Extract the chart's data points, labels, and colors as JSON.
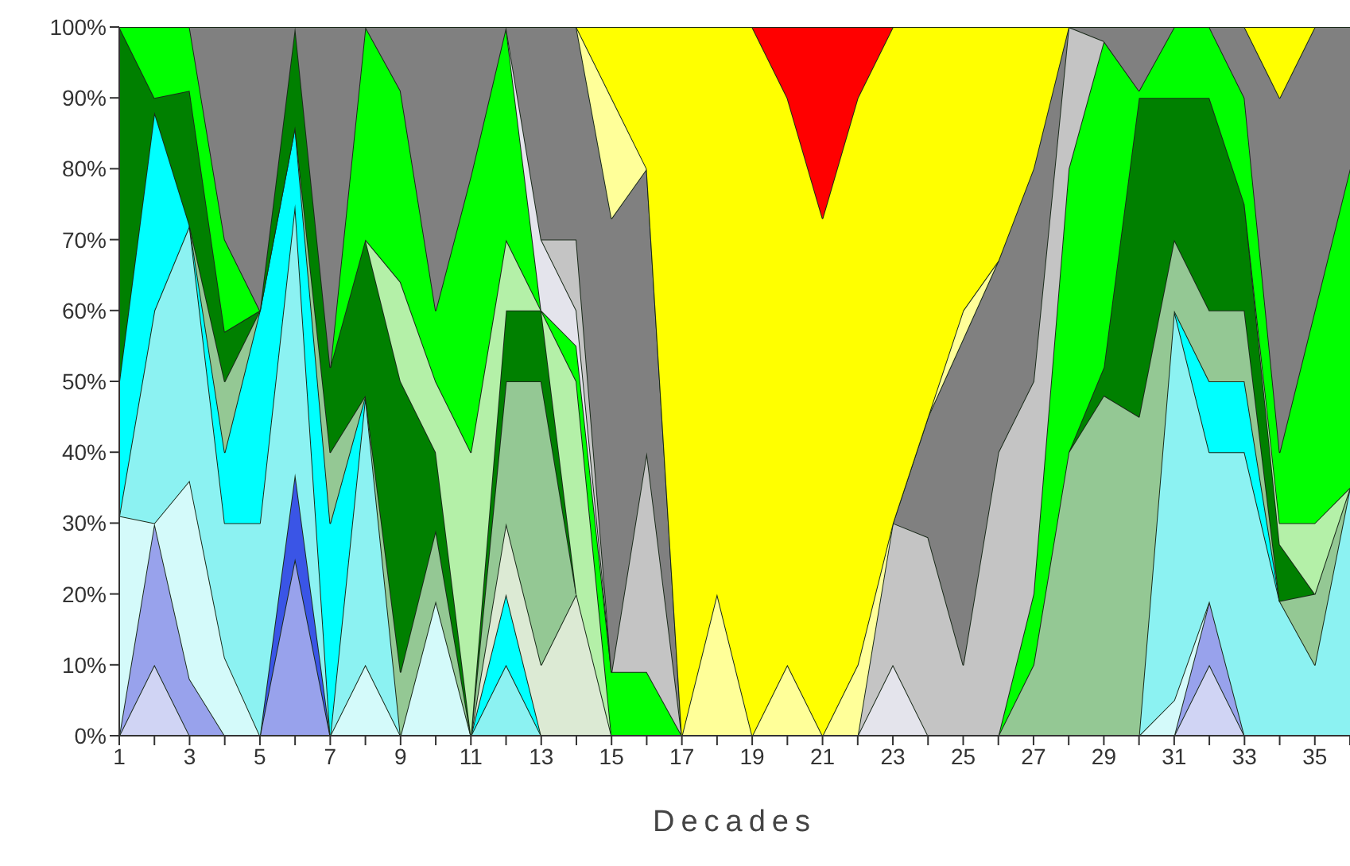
{
  "chart_data": {
    "type": "area",
    "stacked": true,
    "xlabel": "Decades",
    "x": [
      1,
      2,
      3,
      4,
      5,
      6,
      7,
      8,
      9,
      10,
      11,
      12,
      13,
      14,
      15,
      16,
      17,
      18,
      19,
      20,
      21,
      22,
      23,
      24,
      25,
      26,
      27,
      28,
      29,
      30,
      31,
      32,
      33,
      34,
      35,
      36
    ],
    "xlim": [
      1,
      36
    ],
    "xticks": [
      1,
      {
        "value": 2,
        "label": null
      },
      3,
      {
        "value": 4,
        "label": null
      },
      5,
      {
        "value": 6,
        "label": null
      },
      7,
      {
        "value": 8,
        "label": null
      },
      9,
      {
        "value": 10,
        "label": null
      },
      11,
      {
        "value": 12,
        "label": null
      },
      13,
      {
        "value": 14,
        "label": null
      },
      15,
      {
        "value": 16,
        "label": null
      },
      17,
      {
        "value": 18,
        "label": null
      },
      19,
      {
        "value": 20,
        "label": null
      },
      21,
      {
        "value": 22,
        "label": null
      },
      23,
      {
        "value": 24,
        "label": null
      },
      25,
      {
        "value": 26,
        "label": null
      },
      27,
      {
        "value": 28,
        "label": null
      },
      29,
      {
        "value": 30,
        "label": null
      },
      31,
      {
        "value": 32,
        "label": null
      },
      33,
      {
        "value": 34,
        "label": null
      },
      35,
      {
        "value": 36,
        "label": null
      }
    ],
    "ylim": [
      0,
      100
    ],
    "yticks": [
      {
        "value": 0,
        "label": "0%"
      },
      {
        "value": 10,
        "label": "10%"
      },
      {
        "value": 20,
        "label": "20%"
      },
      {
        "value": 30,
        "label": "30%"
      },
      {
        "value": 40,
        "label": "40%"
      },
      {
        "value": 50,
        "label": "50%"
      },
      {
        "value": 60,
        "label": "60%"
      },
      {
        "value": 70,
        "label": "70%"
      },
      {
        "value": 80,
        "label": "80%"
      },
      {
        "value": 90,
        "label": "90%"
      },
      {
        "value": 100,
        "label": "100%"
      }
    ],
    "series": [
      {
        "color": "#d0d4f4",
        "values": [
          0,
          10,
          0,
          null,
          null,
          null,
          null,
          null,
          null,
          null,
          null,
          null,
          null,
          null,
          null,
          null,
          null,
          null,
          null,
          null,
          null,
          null,
          null,
          null,
          null,
          null,
          null,
          null,
          null,
          null,
          0,
          10,
          0,
          null,
          null,
          null
        ]
      },
      {
        "color": "#98a2ec",
        "values": [
          0,
          20,
          8,
          0,
          0,
          25,
          0,
          null,
          null,
          null,
          null,
          null,
          null,
          null,
          null,
          null,
          null,
          null,
          null,
          null,
          null,
          null,
          null,
          null,
          null,
          null,
          null,
          null,
          null,
          null,
          0,
          9,
          0,
          null,
          null,
          null
        ]
      },
      {
        "color": "#3a55e6",
        "values": [
          null,
          null,
          null,
          null,
          0,
          12,
          0,
          null,
          null,
          null,
          null,
          null,
          null,
          null,
          null,
          null,
          null,
          null,
          null,
          null,
          null,
          null,
          null,
          null,
          null,
          null,
          null,
          null,
          null,
          null,
          null,
          null,
          null,
          null,
          null,
          null
        ]
      },
      {
        "color": "#d4fafa",
        "values": [
          31,
          0,
          28,
          11,
          0,
          null,
          0,
          10,
          0,
          19,
          0,
          null,
          null,
          null,
          null,
          null,
          null,
          null,
          null,
          null,
          null,
          null,
          null,
          null,
          null,
          null,
          null,
          null,
          null,
          0,
          5,
          0,
          null,
          null,
          null,
          null
        ]
      },
      {
        "color": "#8cf2f2",
        "values": [
          0,
          30,
          36,
          19,
          30,
          38,
          0,
          38,
          0,
          null,
          0,
          10,
          0,
          null,
          null,
          null,
          null,
          null,
          null,
          null,
          null,
          null,
          null,
          null,
          null,
          null,
          null,
          null,
          null,
          0,
          55,
          21,
          40,
          19,
          10,
          35
        ]
      },
      {
        "color": "#00ffff",
        "values": [
          19,
          28,
          0,
          10,
          30,
          11,
          30,
          0,
          null,
          null,
          0,
          10,
          0,
          null,
          null,
          null,
          null,
          null,
          null,
          null,
          null,
          null,
          null,
          null,
          null,
          null,
          null,
          null,
          null,
          null,
          0,
          10,
          10,
          0,
          null,
          null
        ]
      },
      {
        "color": "#dcead4",
        "values": [
          null,
          null,
          null,
          null,
          null,
          null,
          null,
          null,
          null,
          null,
          0,
          10,
          10,
          20,
          0,
          null,
          null,
          null,
          null,
          null,
          null,
          null,
          null,
          null,
          null,
          null,
          null,
          null,
          null,
          null,
          null,
          null,
          null,
          null,
          null,
          null
        ]
      },
      {
        "color": "#94c894",
        "values": [
          null,
          null,
          0,
          10,
          0,
          0,
          10,
          0,
          9,
          10,
          0,
          20,
          40,
          0,
          null,
          null,
          null,
          null,
          null,
          null,
          null,
          null,
          null,
          null,
          null,
          0,
          10,
          40,
          48,
          45,
          10,
          10,
          10,
          0,
          10,
          0
        ]
      },
      {
        "color": "#008000",
        "values": [
          50,
          2,
          19,
          7,
          0,
          14,
          12,
          22,
          41,
          11,
          0,
          10,
          10,
          0,
          null,
          null,
          null,
          null,
          null,
          null,
          null,
          null,
          null,
          null,
          null,
          null,
          null,
          0,
          4,
          45,
          20,
          30,
          15,
          8,
          0,
          null
        ]
      },
      {
        "color": "#b4f0a8",
        "values": [
          null,
          null,
          null,
          null,
          null,
          null,
          null,
          0,
          14,
          10,
          40,
          10,
          0,
          30,
          0,
          null,
          null,
          null,
          null,
          null,
          null,
          null,
          null,
          null,
          null,
          null,
          null,
          null,
          null,
          null,
          null,
          null,
          0,
          3,
          10,
          0
        ]
      },
      {
        "color": "#00ff00",
        "values": [
          0,
          10,
          9,
          13,
          0,
          null,
          0,
          30,
          27,
          10,
          39,
          30,
          0,
          5,
          9,
          9,
          0,
          null,
          null,
          null,
          null,
          null,
          null,
          null,
          null,
          0,
          10,
          40,
          46,
          1,
          10,
          10,
          15,
          10,
          30,
          45
        ]
      },
      {
        "color": "#e4e4ec",
        "values": [
          null,
          null,
          null,
          null,
          null,
          null,
          null,
          null,
          null,
          null,
          null,
          0,
          10,
          5,
          0,
          null,
          null,
          null,
          null,
          null,
          null,
          0,
          10,
          0,
          null,
          null,
          null,
          null,
          null,
          null,
          null,
          null,
          null,
          null,
          null,
          null
        ]
      },
      {
        "color": "#c4c4c4",
        "values": [
          null,
          null,
          null,
          null,
          null,
          null,
          null,
          null,
          null,
          null,
          null,
          null,
          0,
          10,
          0,
          31,
          0,
          null,
          null,
          null,
          null,
          0,
          20,
          28,
          10,
          40,
          30,
          20,
          0,
          null,
          null,
          null,
          null,
          null,
          null,
          null
        ]
      },
      {
        "color": "#808080",
        "values": [
          null,
          null,
          0,
          30,
          40,
          0,
          48,
          0,
          9,
          40,
          21,
          0,
          30,
          30,
          64,
          40,
          0,
          null,
          null,
          null,
          null,
          null,
          0,
          17,
          46,
          27,
          30,
          0,
          2,
          9,
          0,
          0,
          10,
          50,
          40,
          20
        ]
      },
      {
        "color": "#ffff99",
        "values": [
          null,
          null,
          null,
          null,
          null,
          null,
          null,
          null,
          null,
          null,
          null,
          null,
          null,
          0,
          17,
          0,
          0,
          20,
          0,
          10,
          0,
          10,
          0,
          0,
          4,
          0,
          null,
          null,
          null,
          null,
          null,
          null,
          null,
          null,
          null,
          null
        ]
      },
      {
        "color": "#ffff00",
        "values": [
          null,
          null,
          null,
          null,
          null,
          null,
          null,
          null,
          null,
          null,
          null,
          null,
          null,
          0,
          10,
          20,
          100,
          80,
          100,
          80,
          73,
          80,
          70,
          55,
          40,
          33,
          20,
          0,
          null,
          null,
          null,
          null,
          0,
          10,
          0,
          null
        ]
      },
      {
        "color": "#ff0000",
        "values": [
          null,
          null,
          null,
          null,
          null,
          null,
          null,
          null,
          null,
          null,
          null,
          null,
          null,
          null,
          null,
          null,
          null,
          null,
          0,
          10,
          27,
          10,
          0,
          null,
          null,
          null,
          null,
          null,
          null,
          null,
          null,
          null,
          null,
          null,
          null,
          null
        ]
      }
    ]
  }
}
